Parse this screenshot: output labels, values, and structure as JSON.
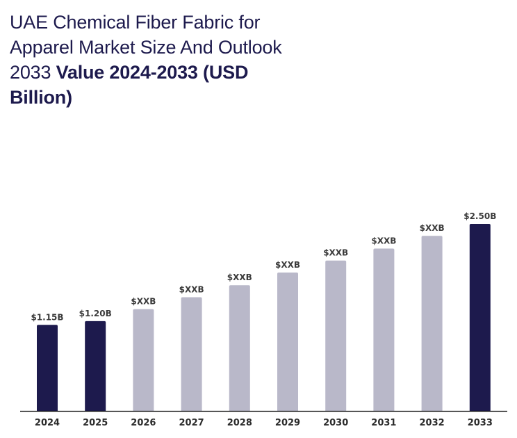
{
  "chart_data": {
    "type": "bar",
    "title": "UAE Chemical Fiber Fabric for Apparel Market Size And Outlook 2033",
    "title_bold": "Value 2024-2033 (USD Billion)",
    "xlabel": "",
    "ylabel": "",
    "categories": [
      "2024",
      "2025",
      "2026",
      "2027",
      "2028",
      "2029",
      "2030",
      "2031",
      "2032",
      "2033"
    ],
    "values": [
      1.15,
      1.2,
      1.36,
      1.52,
      1.68,
      1.85,
      2.01,
      2.17,
      2.34,
      2.5
    ],
    "value_labels": [
      "$1.15B",
      "$1.20B",
      "$XXB",
      "$XXB",
      "$XXB",
      "$XXB",
      "$XXB",
      "$XXB",
      "$XXB",
      "$2.50B"
    ],
    "highlight": [
      true,
      true,
      false,
      false,
      false,
      false,
      false,
      false,
      false,
      true
    ],
    "ylim": [
      0,
      2.5
    ],
    "grid": false,
    "colors": {
      "highlight": "#1d1a4d",
      "default": "#b9b8c9",
      "axis": "#000000",
      "title": "#1d1a4d"
    }
  }
}
